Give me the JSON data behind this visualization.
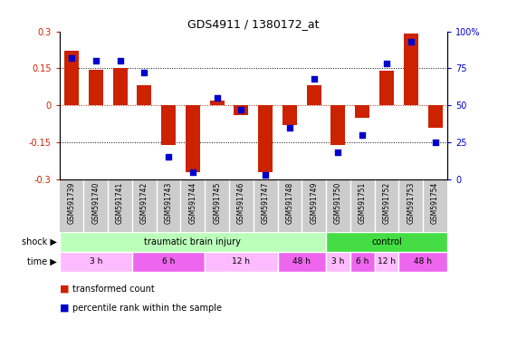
{
  "title": "GDS4911 / 1380172_at",
  "samples": [
    "GSM591739",
    "GSM591740",
    "GSM591741",
    "GSM591742",
    "GSM591743",
    "GSM591744",
    "GSM591745",
    "GSM591746",
    "GSM591747",
    "GSM591748",
    "GSM591749",
    "GSM591750",
    "GSM591751",
    "GSM591752",
    "GSM591753",
    "GSM591754"
  ],
  "transformed_count": [
    0.22,
    0.145,
    0.15,
    0.08,
    -0.16,
    -0.27,
    0.02,
    -0.04,
    -0.27,
    -0.08,
    0.08,
    -0.16,
    -0.05,
    0.14,
    0.29,
    -0.09
  ],
  "percentile_rank": [
    82,
    80,
    80,
    72,
    15,
    5,
    55,
    47,
    3,
    35,
    68,
    18,
    30,
    78,
    93,
    25
  ],
  "ylim": [
    -0.3,
    0.3
  ],
  "y2lim": [
    0,
    100
  ],
  "yticks": [
    -0.3,
    -0.15,
    0,
    0.15,
    0.3
  ],
  "y2ticks": [
    0,
    25,
    50,
    75,
    100
  ],
  "hlines_dotted": [
    -0.15,
    0.15
  ],
  "hline_red": 0,
  "bar_color": "#cc2200",
  "dot_color": "#0000cc",
  "shock_groups": [
    {
      "label": "traumatic brain injury",
      "start": 0,
      "end": 11,
      "color": "#bbffbb"
    },
    {
      "label": "control",
      "start": 11,
      "end": 16,
      "color": "#44dd44"
    }
  ],
  "time_groups": [
    {
      "label": "3 h",
      "start": 0,
      "end": 3,
      "color": "#ffbbff"
    },
    {
      "label": "6 h",
      "start": 3,
      "end": 6,
      "color": "#ee66ee"
    },
    {
      "label": "12 h",
      "start": 6,
      "end": 9,
      "color": "#ffbbff"
    },
    {
      "label": "48 h",
      "start": 9,
      "end": 11,
      "color": "#ee66ee"
    },
    {
      "label": "3 h",
      "start": 11,
      "end": 12,
      "color": "#ffbbff"
    },
    {
      "label": "6 h",
      "start": 12,
      "end": 13,
      "color": "#ee66ee"
    },
    {
      "label": "12 h",
      "start": 13,
      "end": 14,
      "color": "#ffbbff"
    },
    {
      "label": "48 h",
      "start": 14,
      "end": 16,
      "color": "#ee66ee"
    }
  ],
  "legend_bar_color": "#cc2200",
  "legend_dot_color": "#0000cc",
  "legend_bar_label": "transformed count",
  "legend_dot_label": "percentile rank within the sample",
  "shock_label": "shock",
  "time_label": "time",
  "bg_color": "#ffffff",
  "tick_color_left": "#cc2200",
  "tick_color_right": "#0000cc",
  "sample_bg_color": "#cccccc",
  "bar_width": 0.6
}
